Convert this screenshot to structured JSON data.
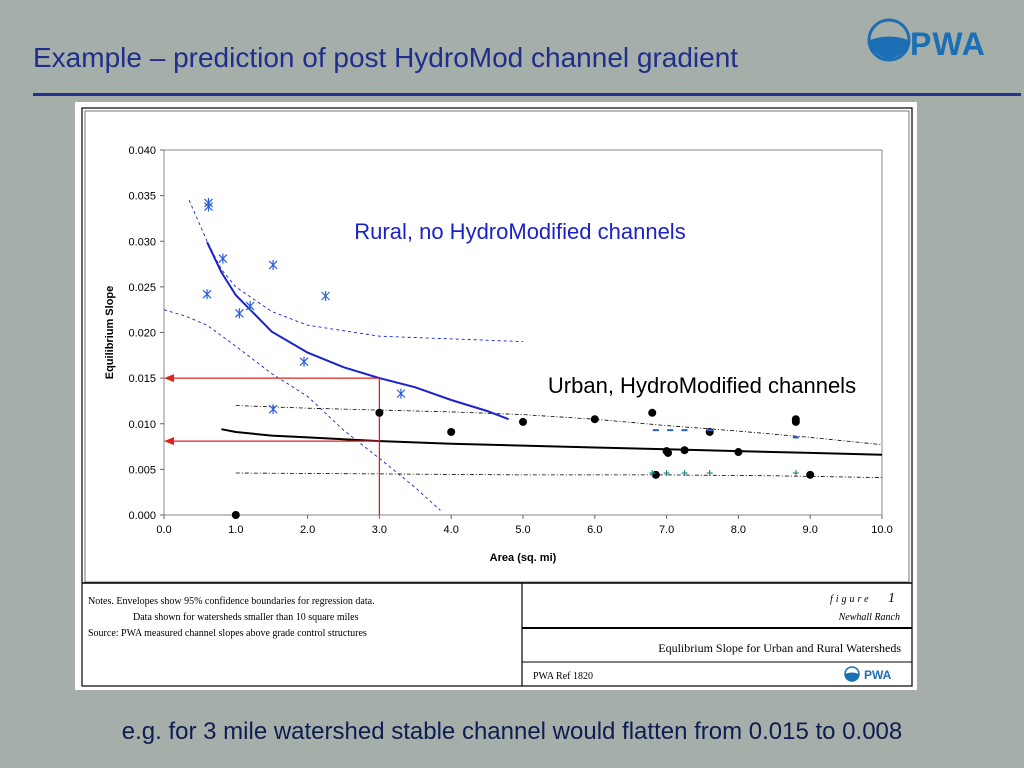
{
  "slide": {
    "title": "Example – prediction of post HydroMod channel gradient",
    "logo_text": "PWA",
    "caption": "e.g. for 3 mile watershed stable channel would flatten from 0.015 to 0.008"
  },
  "chart_data": {
    "type": "scatter",
    "xlabel": "Area (sq. mi)",
    "ylabel": "Equilibrium Slope",
    "xlim": [
      0,
      10
    ],
    "ylim": [
      0,
      0.04
    ],
    "x_ticks": [
      "0.0",
      "1.0",
      "2.0",
      "3.0",
      "4.0",
      "5.0",
      "6.0",
      "7.0",
      "8.0",
      "9.0",
      "10.0"
    ],
    "y_ticks": [
      "0.000",
      "0.005",
      "0.010",
      "0.015",
      "0.020",
      "0.025",
      "0.030",
      "0.035",
      "0.040"
    ],
    "grid": false,
    "annotations": {
      "rural": "Rural, no HydroModified channels",
      "urban": "Urban, HydroModified channels"
    },
    "colors": {
      "rural": "#1a22cc",
      "urban": "#000000",
      "urban_plus": "#2a8a8a",
      "arrow": "#e02020",
      "grid_ci": "#1a22cc"
    },
    "series": [
      {
        "marker": "asterisk",
        "points": [
          [
            0.62,
            0.0342
          ],
          [
            0.62,
            0.0338
          ],
          [
            0.6,
            0.0242
          ],
          [
            0.82,
            0.0281
          ],
          [
            1.05,
            0.0221
          ],
          [
            1.2,
            0.0229
          ],
          [
            1.52,
            0.0274
          ],
          [
            1.52,
            0.0116
          ],
          [
            1.95,
            0.0168
          ],
          [
            2.25,
            0.024
          ],
          [
            3.3,
            0.0133
          ]
        ]
      },
      {
        "marker": "dot",
        "points": [
          [
            1.0,
            0.0
          ],
          [
            3.0,
            0.0112
          ],
          [
            4.0,
            0.0091
          ],
          [
            5.0,
            0.0102
          ],
          [
            6.0,
            0.0105
          ],
          [
            6.8,
            0.0112
          ],
          [
            6.85,
            0.0044
          ],
          [
            7.0,
            0.007
          ],
          [
            7.02,
            0.0068
          ],
          [
            7.25,
            0.0071
          ],
          [
            7.6,
            0.0091
          ],
          [
            8.0,
            0.0069
          ],
          [
            8.8,
            0.0105
          ],
          [
            8.8,
            0.0102
          ],
          [
            9.0,
            0.0044
          ]
        ]
      },
      {
        "marker": "plus",
        "points": [
          [
            6.8,
            0.0046
          ],
          [
            7.0,
            0.0046
          ],
          [
            7.25,
            0.0046
          ],
          [
            7.6,
            0.0046
          ],
          [
            8.8,
            0.0046
          ]
        ]
      },
      {
        "marker": "dash",
        "points": [
          [
            6.85,
            0.0093
          ],
          [
            7.05,
            0.0093
          ],
          [
            7.25,
            0.0093
          ],
          [
            7.6,
            0.0093
          ],
          [
            8.8,
            0.0085
          ]
        ]
      }
    ],
    "curves": {
      "rural_fit": [
        [
          0.6,
          0.0299
        ],
        [
          0.8,
          0.0266
        ],
        [
          1.0,
          0.0241
        ],
        [
          1.5,
          0.0201
        ],
        [
          2.0,
          0.0178
        ],
        [
          2.5,
          0.0162
        ],
        [
          3.0,
          0.015
        ],
        [
          3.5,
          0.014
        ],
        [
          4.0,
          0.0126
        ],
        [
          4.5,
          0.0114
        ],
        [
          4.8,
          0.0105
        ]
      ],
      "urban_fit": [
        [
          0.8,
          0.0094
        ],
        [
          1.0,
          0.0091
        ],
        [
          1.5,
          0.0087
        ],
        [
          2.0,
          0.0085
        ],
        [
          3.0,
          0.0081
        ],
        [
          4.0,
          0.0078
        ],
        [
          5.0,
          0.0076
        ],
        [
          6.0,
          0.0074
        ],
        [
          7.0,
          0.0072
        ],
        [
          8.0,
          0.007
        ],
        [
          9.0,
          0.0068
        ],
        [
          10.0,
          0.0066
        ]
      ],
      "rural_upper_ci": [
        [
          0.35,
          0.0345
        ],
        [
          0.6,
          0.03
        ],
        [
          0.8,
          0.0269
        ],
        [
          1.0,
          0.025
        ],
        [
          1.5,
          0.0223
        ],
        [
          2.0,
          0.0208
        ],
        [
          3.0,
          0.0196
        ],
        [
          4.0,
          0.0193
        ],
        [
          5.0,
          0.019
        ]
      ],
      "rural_lower_ci": [
        [
          0.0,
          0.0225
        ],
        [
          0.3,
          0.0218
        ],
        [
          0.6,
          0.0208
        ],
        [
          1.0,
          0.0185
        ],
        [
          1.5,
          0.0155
        ],
        [
          2.0,
          0.013
        ],
        [
          2.5,
          0.0093
        ],
        [
          3.0,
          0.0062
        ],
        [
          3.5,
          0.003
        ],
        [
          3.85,
          0.0005
        ]
      ],
      "urban_upper_ci": [
        [
          1.0,
          0.012
        ],
        [
          2.0,
          0.0117
        ],
        [
          3.0,
          0.0115
        ],
        [
          4.0,
          0.0113
        ],
        [
          5.0,
          0.011
        ],
        [
          6.0,
          0.0105
        ],
        [
          7.0,
          0.0098
        ],
        [
          8.0,
          0.0092
        ],
        [
          9.0,
          0.0085
        ],
        [
          10.0,
          0.0077
        ]
      ],
      "urban_lower_ci": [
        [
          1.0,
          0.0046
        ],
        [
          3.0,
          0.0045
        ],
        [
          5.0,
          0.0044
        ],
        [
          7.0,
          0.0044
        ],
        [
          8.5,
          0.0043
        ],
        [
          10.0,
          0.0041
        ]
      ]
    },
    "reading_lines": {
      "x": 3.0,
      "y_rural": 0.015,
      "y_urban": 0.0081
    }
  },
  "figure_block": {
    "notes": [
      "Notes. Envelopes show 95% confidence boundaries for regression data.",
      "Data shown for watersheds smaller than 10 square miles",
      "Source: PWA measured channel slopes above grade control structures"
    ],
    "figure_word": "figure",
    "figure_number": "1",
    "project": "Newhall Ranch",
    "figure_title": "Equlibrium Slope for Urban and Rural Watersheds",
    "ref": "PWA Ref 1820",
    "mini_logo": "PWA"
  }
}
